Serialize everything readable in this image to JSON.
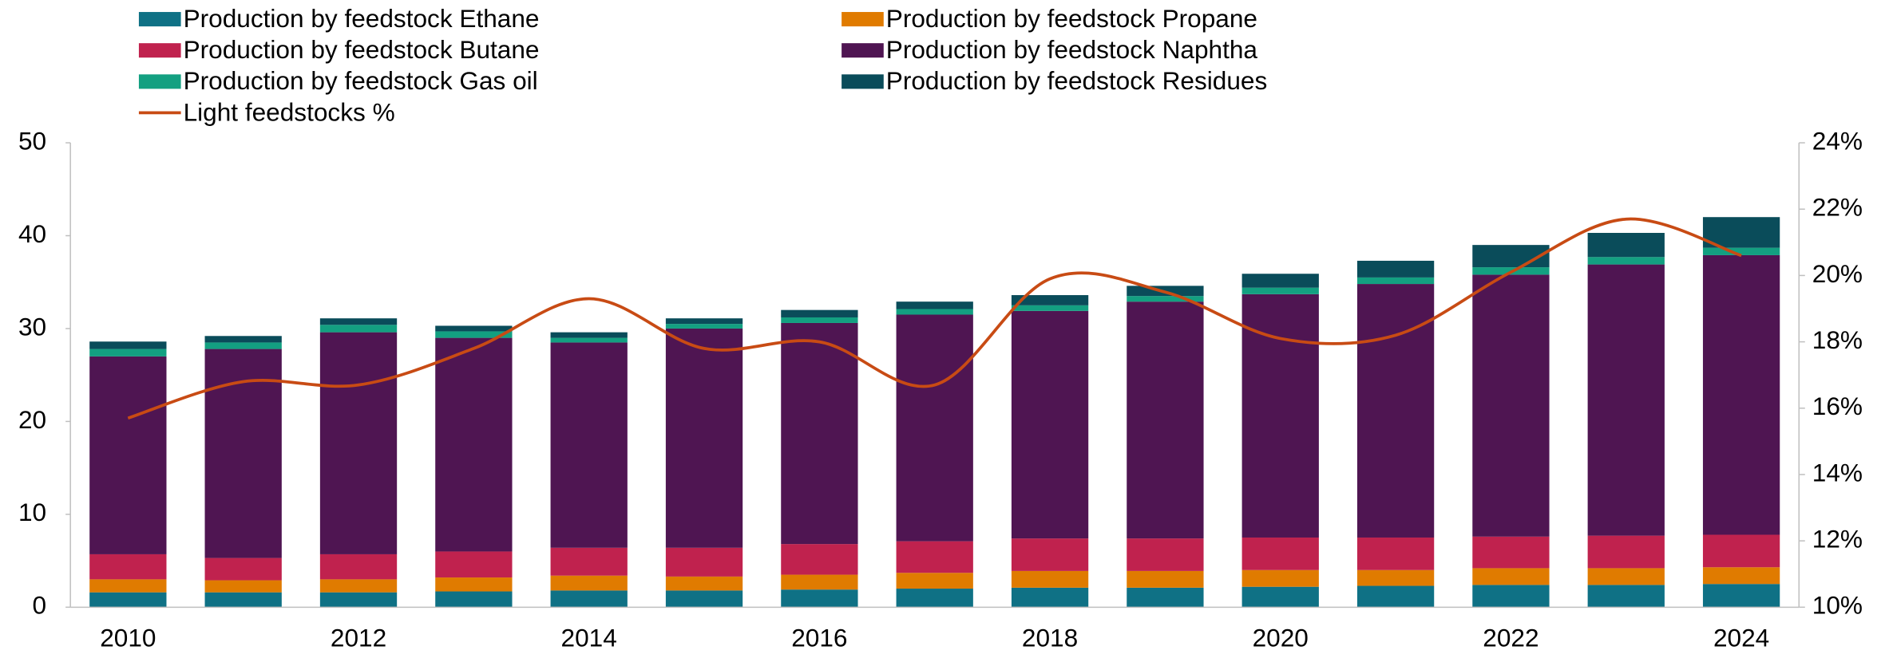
{
  "chart_data": {
    "type": "bar",
    "stacked": true,
    "categories": [
      "2010",
      null,
      "2012",
      null,
      "2014",
      null,
      "2016",
      null,
      "2018",
      null,
      "2020",
      null,
      "2022",
      null,
      "2024"
    ],
    "series": [
      {
        "name": "Production by feedstock Ethane",
        "color": "#0f7185",
        "values": [
          1.6,
          1.6,
          1.6,
          1.7,
          1.8,
          1.8,
          1.9,
          2.0,
          2.1,
          2.1,
          2.2,
          2.3,
          2.4,
          2.4,
          2.5
        ]
      },
      {
        "name": "Production by feedstock Propane",
        "color": "#e07b00",
        "values": [
          1.4,
          1.3,
          1.4,
          1.5,
          1.6,
          1.5,
          1.6,
          1.7,
          1.8,
          1.8,
          1.8,
          1.7,
          1.8,
          1.8,
          1.8
        ]
      },
      {
        "name": "Production by feedstock Butane",
        "color": "#c0224e",
        "values": [
          2.7,
          2.4,
          2.7,
          2.8,
          3.0,
          3.1,
          3.3,
          3.4,
          3.5,
          3.5,
          3.5,
          3.5,
          3.4,
          3.5,
          3.5
        ]
      },
      {
        "name": "Production by feedstock Naphtha",
        "color": "#4f1552",
        "values": [
          21.3,
          22.5,
          23.9,
          23.0,
          22.1,
          23.6,
          23.8,
          24.4,
          24.5,
          25.5,
          26.2,
          27.3,
          28.2,
          29.2,
          30.1
        ]
      },
      {
        "name": "Production by feedstock Gas oil",
        "color": "#13a081",
        "values": [
          0.8,
          0.7,
          0.8,
          0.7,
          0.5,
          0.5,
          0.6,
          0.6,
          0.6,
          0.6,
          0.7,
          0.7,
          0.8,
          0.8,
          0.8
        ]
      },
      {
        "name": "Production by feedstock Residues",
        "color": "#0a4c5a",
        "values": [
          0.8,
          0.7,
          0.7,
          0.6,
          0.6,
          0.6,
          0.8,
          0.8,
          1.1,
          1.1,
          1.5,
          1.8,
          2.4,
          2.6,
          3.3
        ]
      },
      {
        "name": "Light feedstocks %",
        "color": "#c84b14",
        "type": "line",
        "axis": "y2",
        "values": [
          15.7,
          16.8,
          16.7,
          17.8,
          19.3,
          17.8,
          18.0,
          16.7,
          19.9,
          19.5,
          18.1,
          18.2,
          20.1,
          21.7,
          20.6
        ]
      }
    ],
    "ylim": [
      0,
      50
    ],
    "yticks": [
      0,
      10,
      20,
      30,
      40,
      50
    ],
    "y2lim": [
      10,
      24
    ],
    "y2ticks": [
      {
        "value": 10,
        "label": "10%"
      },
      {
        "value": 12,
        "label": "12%"
      },
      {
        "value": 14,
        "label": "14%"
      },
      {
        "value": 16,
        "label": "16%"
      },
      {
        "value": 18,
        "label": "18%"
      },
      {
        "value": 20,
        "label": "20%"
      },
      {
        "value": 22,
        "label": "22%"
      },
      {
        "value": 24,
        "label": "24%"
      }
    ],
    "legend": "top"
  }
}
